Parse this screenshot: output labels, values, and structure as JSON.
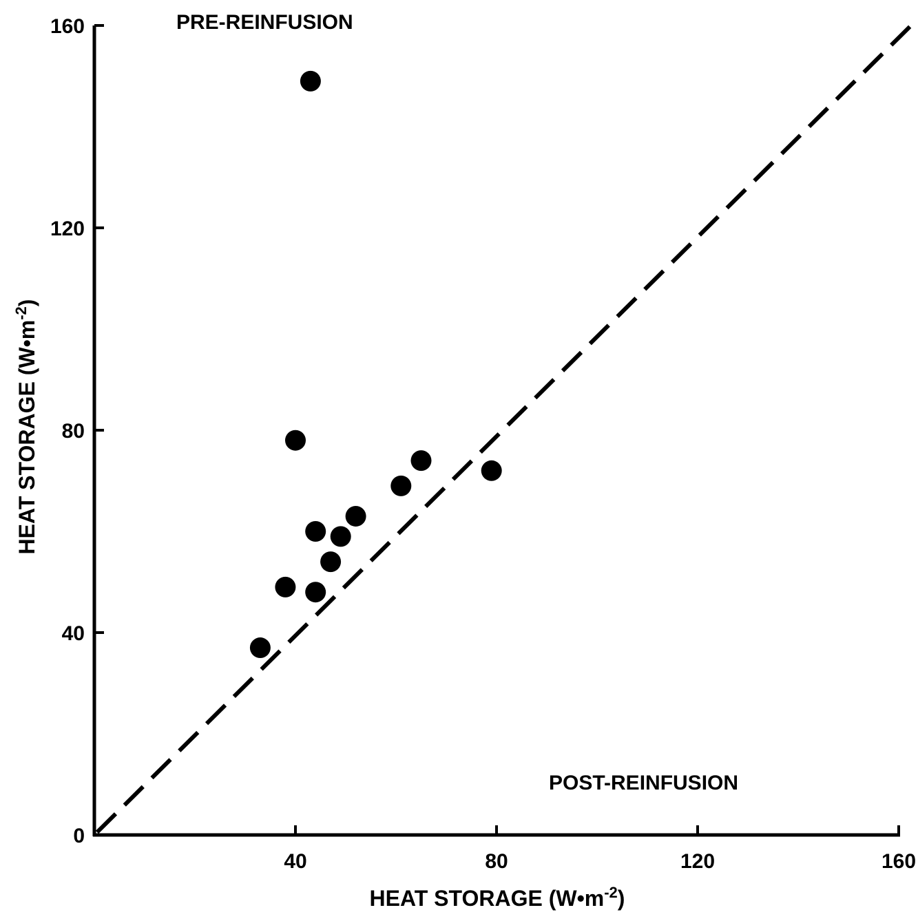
{
  "chart_data": {
    "type": "scatter",
    "title": "",
    "xlabel": "HEAT STORAGE (W•m-2)",
    "ylabel": "HEAT STORAGE (W•m-2)",
    "xlabel_parts": {
      "base": "HEAT STORAGE (W•m",
      "sup": "-2",
      "end": ")"
    },
    "ylabel_parts": {
      "base": "HEAT STORAGE (W•m",
      "sup": "-2",
      "end": ")"
    },
    "xlim": [
      0,
      160
    ],
    "ylim": [
      0,
      160
    ],
    "xticks": [
      40,
      80,
      120,
      160
    ],
    "xtick_labels": [
      "40",
      "80",
      "120",
      "160"
    ],
    "yticks": [
      0,
      40,
      80,
      120,
      160
    ],
    "ytick_labels": [
      "0",
      "40",
      "80",
      "120",
      "160"
    ],
    "grid": false,
    "annotations": {
      "top_left": "PRE-REINFUSION",
      "bottom_right": "POST-REINFUSION"
    },
    "identity_line": {
      "from": [
        0,
        0
      ],
      "to": [
        160,
        160
      ],
      "style": "dashed"
    },
    "marker_color": "#000000",
    "points": [
      {
        "x": 43,
        "y": 149
      },
      {
        "x": 40,
        "y": 78
      },
      {
        "x": 65,
        "y": 74
      },
      {
        "x": 79,
        "y": 72
      },
      {
        "x": 61,
        "y": 69
      },
      {
        "x": 52,
        "y": 63
      },
      {
        "x": 44,
        "y": 60
      },
      {
        "x": 49,
        "y": 59
      },
      {
        "x": 47,
        "y": 54
      },
      {
        "x": 38,
        "y": 49
      },
      {
        "x": 44,
        "y": 48
      },
      {
        "x": 33,
        "y": 37
      }
    ]
  }
}
